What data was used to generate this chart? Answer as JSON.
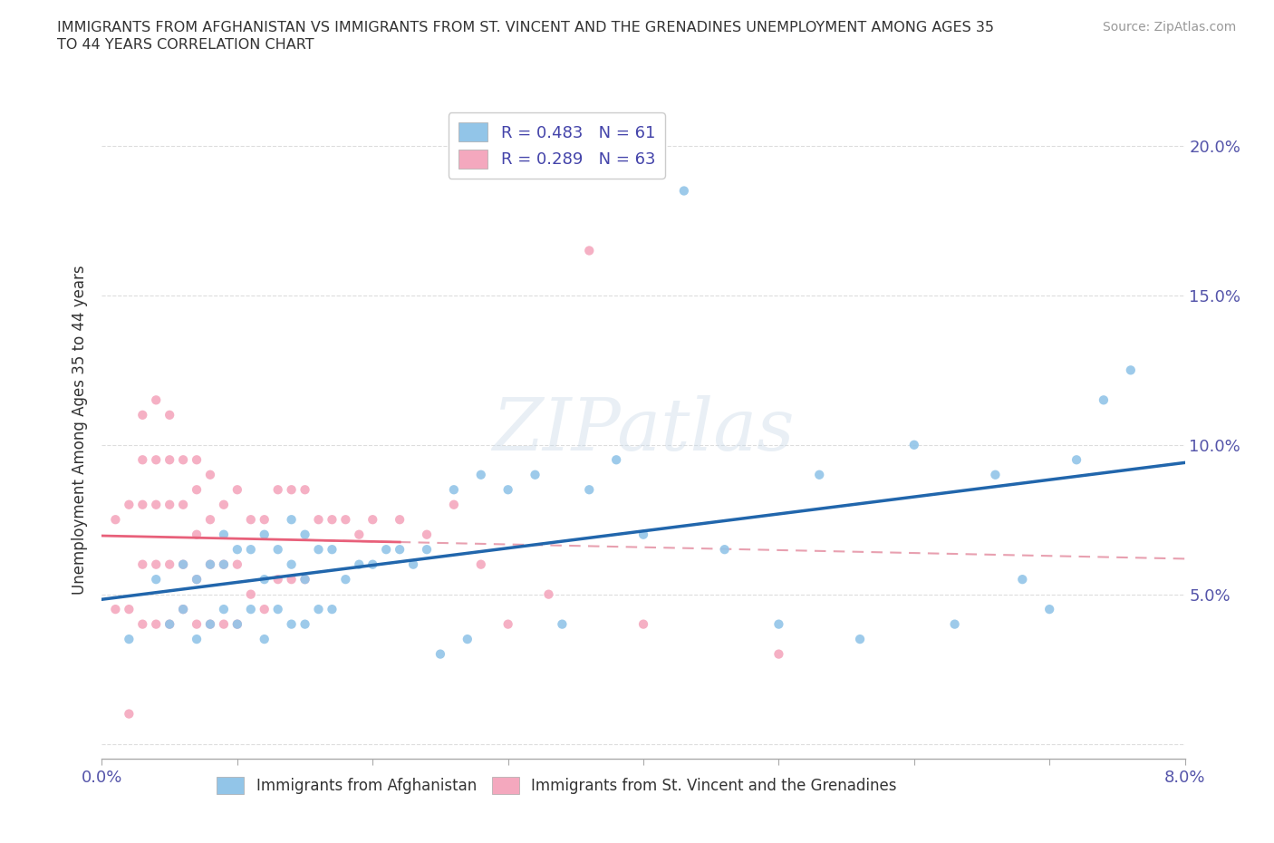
{
  "title": "IMMIGRANTS FROM AFGHANISTAN VS IMMIGRANTS FROM ST. VINCENT AND THE GRENADINES UNEMPLOYMENT AMONG AGES 35\nTO 44 YEARS CORRELATION CHART",
  "source": "Source: ZipAtlas.com",
  "ylabel": "Unemployment Among Ages 35 to 44 years",
  "ytick_labels": [
    "",
    "5.0%",
    "10.0%",
    "15.0%",
    "20.0%"
  ],
  "ytick_vals": [
    0.0,
    0.05,
    0.1,
    0.15,
    0.2
  ],
  "xlim": [
    0.0,
    0.08
  ],
  "ylim": [
    -0.005,
    0.215
  ],
  "R_blue": 0.483,
  "N_blue": 61,
  "R_pink": 0.289,
  "N_pink": 63,
  "color_blue": "#92C5E8",
  "color_pink": "#F4A8BE",
  "color_blue_line": "#2166AC",
  "color_pink_line": "#E8607A",
  "color_pink_dash": "#E8A0B0",
  "watermark_text": "ZIPatlas",
  "legend_label_blue": "Immigrants from Afghanistan",
  "legend_label_pink": "Immigrants from St. Vincent and the Grenadines",
  "blue_x": [
    0.002,
    0.004,
    0.005,
    0.006,
    0.006,
    0.007,
    0.007,
    0.008,
    0.008,
    0.009,
    0.009,
    0.009,
    0.01,
    0.01,
    0.011,
    0.011,
    0.012,
    0.012,
    0.012,
    0.013,
    0.013,
    0.014,
    0.014,
    0.014,
    0.015,
    0.015,
    0.015,
    0.016,
    0.016,
    0.017,
    0.017,
    0.018,
    0.019,
    0.02,
    0.021,
    0.022,
    0.023,
    0.024,
    0.025,
    0.026,
    0.027,
    0.028,
    0.03,
    0.032,
    0.034,
    0.036,
    0.038,
    0.04,
    0.043,
    0.046,
    0.05,
    0.053,
    0.056,
    0.06,
    0.063,
    0.066,
    0.068,
    0.07,
    0.072,
    0.074,
    0.076
  ],
  "blue_y": [
    0.035,
    0.055,
    0.04,
    0.045,
    0.06,
    0.035,
    0.055,
    0.04,
    0.06,
    0.045,
    0.06,
    0.07,
    0.04,
    0.065,
    0.045,
    0.065,
    0.035,
    0.055,
    0.07,
    0.045,
    0.065,
    0.04,
    0.06,
    0.075,
    0.04,
    0.055,
    0.07,
    0.045,
    0.065,
    0.045,
    0.065,
    0.055,
    0.06,
    0.06,
    0.065,
    0.065,
    0.06,
    0.065,
    0.03,
    0.085,
    0.035,
    0.09,
    0.085,
    0.09,
    0.04,
    0.085,
    0.095,
    0.07,
    0.185,
    0.065,
    0.04,
    0.09,
    0.035,
    0.1,
    0.04,
    0.09,
    0.055,
    0.045,
    0.095,
    0.115,
    0.125
  ],
  "pink_x": [
    0.001,
    0.001,
    0.002,
    0.002,
    0.002,
    0.003,
    0.003,
    0.003,
    0.003,
    0.003,
    0.004,
    0.004,
    0.004,
    0.004,
    0.004,
    0.005,
    0.005,
    0.005,
    0.005,
    0.005,
    0.006,
    0.006,
    0.006,
    0.006,
    0.007,
    0.007,
    0.007,
    0.007,
    0.007,
    0.008,
    0.008,
    0.008,
    0.008,
    0.009,
    0.009,
    0.009,
    0.01,
    0.01,
    0.01,
    0.011,
    0.011,
    0.012,
    0.012,
    0.013,
    0.013,
    0.014,
    0.014,
    0.015,
    0.015,
    0.016,
    0.017,
    0.018,
    0.019,
    0.02,
    0.022,
    0.024,
    0.026,
    0.028,
    0.03,
    0.033,
    0.036,
    0.04,
    0.05
  ],
  "pink_y": [
    0.045,
    0.075,
    0.045,
    0.08,
    0.01,
    0.04,
    0.06,
    0.08,
    0.095,
    0.11,
    0.04,
    0.06,
    0.08,
    0.095,
    0.115,
    0.04,
    0.06,
    0.08,
    0.095,
    0.11,
    0.045,
    0.06,
    0.08,
    0.095,
    0.04,
    0.055,
    0.07,
    0.085,
    0.095,
    0.04,
    0.06,
    0.075,
    0.09,
    0.04,
    0.06,
    0.08,
    0.04,
    0.06,
    0.085,
    0.05,
    0.075,
    0.045,
    0.075,
    0.055,
    0.085,
    0.055,
    0.085,
    0.055,
    0.085,
    0.075,
    0.075,
    0.075,
    0.07,
    0.075,
    0.075,
    0.07,
    0.08,
    0.06,
    0.04,
    0.05,
    0.165,
    0.04,
    0.03
  ]
}
